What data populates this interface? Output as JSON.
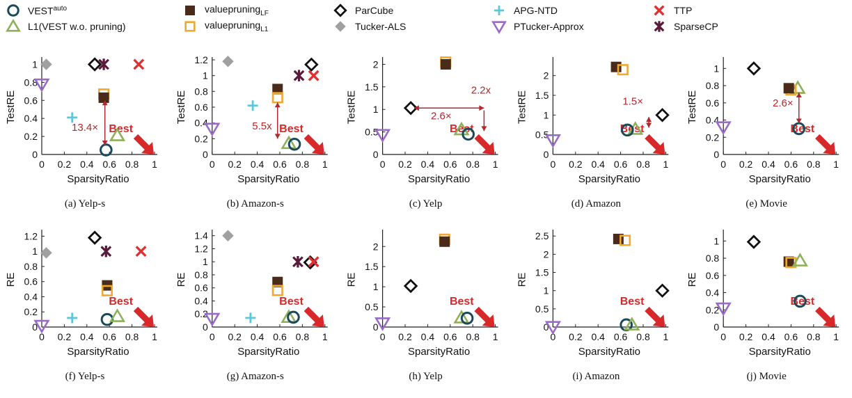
{
  "legend": [
    {
      "key": "vest_auto",
      "label": "VEST",
      "sup": "auto",
      "marker": "circle-open",
      "color": "#1a4a5a"
    },
    {
      "key": "l1",
      "label": "L1(VEST w.o. pruning)",
      "marker": "triangle-open",
      "color": "#8fb05a"
    },
    {
      "key": "vp_lf",
      "label": "valuepruning",
      "sub": "LF",
      "marker": "square-filled",
      "color": "#4a2a18"
    },
    {
      "key": "vp_l1",
      "label": "valuepruning",
      "sub": "L1",
      "marker": "square-open",
      "color": "#f0a830"
    },
    {
      "key": "parcube",
      "label": "ParCube",
      "marker": "diamond-open",
      "color": "#111111"
    },
    {
      "key": "tucker_als",
      "label": "Tucker-ALS",
      "marker": "diamond-filled",
      "color": "#a0a0a0"
    },
    {
      "key": "apg_ntd",
      "label": "APG-NTD",
      "marker": "plus",
      "color": "#5ac8d8"
    },
    {
      "key": "ptucker",
      "label": "PTucker-Approx",
      "marker": "triangle-down-open",
      "color": "#9a6ac8"
    },
    {
      "key": "ttp",
      "label": "TTP",
      "marker": "x",
      "color": "#e03030"
    },
    {
      "key": "sparsecp",
      "label": "SparseCP",
      "marker": "asterisk",
      "color": "#5a1a3a"
    }
  ],
  "chart_data": [
    {
      "type": "scatter",
      "caption": "(a) Yelp-s",
      "xlabel": "SparsityRatio",
      "ylabel": "TestRE",
      "xlim": [
        0,
        1
      ],
      "ylim": [
        0,
        1.05
      ],
      "xticks": [
        "0",
        "0.2",
        "0.4",
        "0.6",
        "0.8",
        "1"
      ],
      "yticks": [
        0,
        0.2,
        0.4,
        0.6,
        0.8,
        1
      ],
      "yfmt": [
        "0",
        "0.2",
        "0.4",
        "0.6",
        "0.8",
        "1"
      ],
      "best": "Best",
      "ratio_label": "13.4×",
      "points": {
        "tucker_als": [
          0.04,
          1.0
        ],
        "ptucker": [
          0.0,
          0.78
        ],
        "parcube": [
          0.47,
          1.0
        ],
        "sparsecp": [
          0.55,
          1.0
        ],
        "ttp": [
          0.86,
          1.0
        ],
        "vp_l1": [
          0.55,
          0.67
        ],
        "vp_lf": [
          0.55,
          0.63
        ],
        "apg_ntd": [
          0.27,
          0.41
        ],
        "l1": [
          0.67,
          0.21
        ],
        "vest_auto": [
          0.57,
          0.05
        ]
      }
    },
    {
      "type": "scatter",
      "caption": "(b) Amazon-s",
      "xlabel": "SparsityRatio",
      "ylabel": "TestRE",
      "xlim": [
        0,
        1
      ],
      "ylim": [
        0,
        1.2
      ],
      "xticks": [
        "0",
        "0.2",
        "0.4",
        "0.6",
        "0.8",
        "1"
      ],
      "yticks": [
        0,
        0.2,
        0.4,
        0.6,
        0.8,
        1,
        1.2
      ],
      "yfmt": [
        "0",
        "0.2",
        "0.4",
        "0.6",
        "0.8",
        "1",
        "1.2"
      ],
      "best": "Best",
      "ratio_label": "5.5x",
      "points": {
        "tucker_als": [
          0.14,
          1.18
        ],
        "ptucker": [
          0.0,
          0.33
        ],
        "parcube": [
          0.88,
          1.14
        ],
        "sparsecp": [
          0.77,
          1.0
        ],
        "ttp": [
          0.9,
          1.0
        ],
        "vp_lf": [
          0.58,
          0.83
        ],
        "vp_l1": [
          0.58,
          0.72
        ],
        "apg_ntd": [
          0.36,
          0.62
        ],
        "l1": [
          0.68,
          0.14
        ],
        "vest_auto": [
          0.73,
          0.13
        ]
      }
    },
    {
      "type": "scatter",
      "caption": "(c) Yelp",
      "xlabel": "SparsityRatio",
      "ylabel": "TestRE",
      "xlim": [
        0,
        1
      ],
      "ylim": [
        0,
        2.1
      ],
      "xticks": [
        "0",
        "0.2",
        "0.4",
        "0.6",
        "0.8",
        "1"
      ],
      "yticks": [
        0,
        0.5,
        1,
        1.5,
        2
      ],
      "yfmt": [
        "0",
        "0.5",
        "1",
        "1.5",
        "2"
      ],
      "best": "Best",
      "ratio_label": "2.6×",
      "ratio_label2": "2.2x",
      "points": {
        "vp_l1": [
          0.56,
          2.05
        ],
        "vp_lf": [
          0.56,
          2.0
        ],
        "parcube": [
          0.25,
          1.03
        ],
        "ptucker": [
          0.0,
          0.44
        ],
        "l1": [
          0.7,
          0.55
        ],
        "vest_auto": [
          0.76,
          0.45
        ]
      }
    },
    {
      "type": "scatter",
      "caption": "(d) Amazon",
      "xlabel": "SparsityRatio",
      "ylabel": "TestRE",
      "xlim": [
        0,
        1
      ],
      "ylim": [
        0,
        2.4
      ],
      "xticks": [
        "0",
        "0.2",
        "0.4",
        "0.6",
        "0.8",
        "1"
      ],
      "yticks": [
        0,
        0.5,
        1,
        1.5,
        2
      ],
      "yfmt": [
        "0",
        "0.5",
        "1",
        "1.5",
        "2"
      ],
      "best": "Best",
      "ratio_label": "1.5×",
      "points": {
        "vp_lf": [
          0.56,
          2.22
        ],
        "vp_l1": [
          0.62,
          2.15
        ],
        "parcube": [
          0.97,
          1.0
        ],
        "l1": [
          0.73,
          0.64
        ],
        "vest_auto": [
          0.66,
          0.62
        ],
        "ptucker": [
          0.0,
          0.37
        ]
      }
    },
    {
      "type": "scatter",
      "caption": "(e) Movie",
      "xlabel": "SparsityRatio",
      "ylabel": "TestRE",
      "xlim": [
        0,
        1
      ],
      "ylim": [
        0,
        1.1
      ],
      "xticks": [
        "0",
        "0.2",
        "0.4",
        "0.6",
        "0.8",
        "1"
      ],
      "yticks": [
        0,
        0.2,
        0.4,
        0.6,
        0.8,
        1
      ],
      "yfmt": [
        "0",
        "0.2",
        "0.4",
        "0.6",
        "0.8",
        "1"
      ],
      "best": "Best",
      "ratio_label": "2.6×",
      "points": {
        "parcube": [
          0.27,
          1.0
        ],
        "l1": [
          0.66,
          0.77
        ],
        "vp_l1": [
          0.6,
          0.75
        ],
        "vp_lf": [
          0.58,
          0.77
        ],
        "ptucker": [
          0.0,
          0.32
        ],
        "vest_auto": [
          0.67,
          0.3
        ]
      }
    },
    {
      "type": "scatter",
      "caption": "(f) Yelp-s",
      "xlabel": "SparsityRatio",
      "ylabel": "RE",
      "xlim": [
        0,
        1
      ],
      "ylim": [
        0,
        1.25
      ],
      "xticks": [
        "0",
        "0.2",
        "0.4",
        "0.6",
        "0.8",
        "1"
      ],
      "yticks": [
        0,
        0.2,
        0.4,
        0.6,
        0.8,
        1,
        1.2
      ],
      "yfmt": [
        "0",
        "0.2",
        "0.4",
        "0.6",
        "0.8",
        "1",
        "1.2"
      ],
      "best": "Best",
      "points": {
        "parcube": [
          0.47,
          1.18
        ],
        "tucker_als": [
          0.04,
          0.98
        ],
        "sparsecp": [
          0.57,
          1.0
        ],
        "ttp": [
          0.88,
          1.0
        ],
        "vp_lf": [
          0.58,
          0.55
        ],
        "vp_l1": [
          0.58,
          0.48
        ],
        "apg_ntd": [
          0.27,
          0.12
        ],
        "vest_auto": [
          0.58,
          0.1
        ],
        "l1": [
          0.67,
          0.14
        ],
        "ptucker": [
          0.0,
          0.02
        ]
      }
    },
    {
      "type": "scatter",
      "caption": "(g) Amazon-s",
      "xlabel": "SparsityRatio",
      "ylabel": "RE",
      "xlim": [
        0,
        1
      ],
      "ylim": [
        0,
        1.45
      ],
      "xticks": [
        "0",
        "0.2",
        "0.4",
        "0.6",
        "0.8",
        "1"
      ],
      "yticks": [
        0,
        0.2,
        0.4,
        0.6,
        0.8,
        1,
        1.2,
        1.4
      ],
      "yfmt": [
        "0",
        "0.2",
        "0.4",
        "0.6",
        "0.8",
        "1",
        "1.2",
        "1.4"
      ],
      "best": "Best",
      "points": {
        "tucker_als": [
          0.14,
          1.4
        ],
        "sparsecp": [
          0.76,
          1.0
        ],
        "parcube": [
          0.87,
          0.99
        ],
        "ttp": [
          0.9,
          1.0
        ],
        "vp_lf": [
          0.58,
          0.69
        ],
        "vp_l1": [
          0.58,
          0.56
        ],
        "ptucker": [
          0.0,
          0.13
        ],
        "apg_ntd": [
          0.34,
          0.14
        ],
        "l1": [
          0.68,
          0.15
        ],
        "vest_auto": [
          0.72,
          0.15
        ]
      }
    },
    {
      "type": "scatter",
      "caption": "(h) Yelp",
      "xlabel": "SparsityRatio",
      "ylabel": "RE",
      "xlim": [
        0,
        1
      ],
      "ylim": [
        0,
        2.35
      ],
      "xticks": [
        "0",
        "0.2",
        "0.4",
        "0.6",
        "0.8",
        "1"
      ],
      "yticks": [
        0,
        0.5,
        1,
        1.5,
        2
      ],
      "yfmt": [
        "0",
        "0.5",
        "1",
        "1.5",
        "2"
      ],
      "best": "Best",
      "points": {
        "vp_l1": [
          0.55,
          2.18
        ],
        "vp_lf": [
          0.55,
          2.12
        ],
        "parcube": [
          0.25,
          1.02
        ],
        "l1": [
          0.7,
          0.23
        ],
        "vest_auto": [
          0.75,
          0.22
        ],
        "ptucker": [
          0.0,
          0.1
        ]
      }
    },
    {
      "type": "scatter",
      "caption": "(i) Amazon",
      "xlabel": "SparsityRatio",
      "ylabel": "RE",
      "xlim": [
        0,
        1
      ],
      "ylim": [
        0,
        2.6
      ],
      "xticks": [
        "0",
        "0.2",
        "0.4",
        "0.6",
        "0.8",
        "1"
      ],
      "yticks": [
        0,
        0.5,
        1,
        1.5,
        2,
        2.5
      ],
      "yfmt": [
        "0",
        "0.5",
        "1",
        "1.5",
        "2",
        "2.5"
      ],
      "best": "Best",
      "points": {
        "vp_lf": [
          0.58,
          2.42
        ],
        "vp_l1": [
          0.64,
          2.38
        ],
        "parcube": [
          0.97,
          1.0
        ],
        "vest_auto": [
          0.65,
          0.06
        ],
        "l1": [
          0.7,
          0.06
        ],
        "ptucker": [
          0.0,
          0.01
        ]
      }
    },
    {
      "type": "scatter",
      "caption": "(j) Movie",
      "xlabel": "SparsityRatio",
      "ylabel": "RE",
      "xlim": [
        0,
        1
      ],
      "ylim": [
        0,
        1.1
      ],
      "xticks": [
        "0",
        "0.2",
        "0.4",
        "0.6",
        "0.8",
        "1"
      ],
      "yticks": [
        0,
        0.2,
        0.4,
        0.6,
        0.8,
        1
      ],
      "yfmt": [
        "0",
        "0.2",
        "0.4",
        "0.6",
        "0.8",
        "1"
      ],
      "best": "Best",
      "points": {
        "parcube": [
          0.27,
          0.99
        ],
        "vp_lf": [
          0.58,
          0.76
        ],
        "vp_l1": [
          0.6,
          0.75
        ],
        "l1": [
          0.68,
          0.77
        ],
        "vest_auto": [
          0.68,
          0.3
        ],
        "ptucker": [
          0.0,
          0.22
        ]
      }
    }
  ]
}
